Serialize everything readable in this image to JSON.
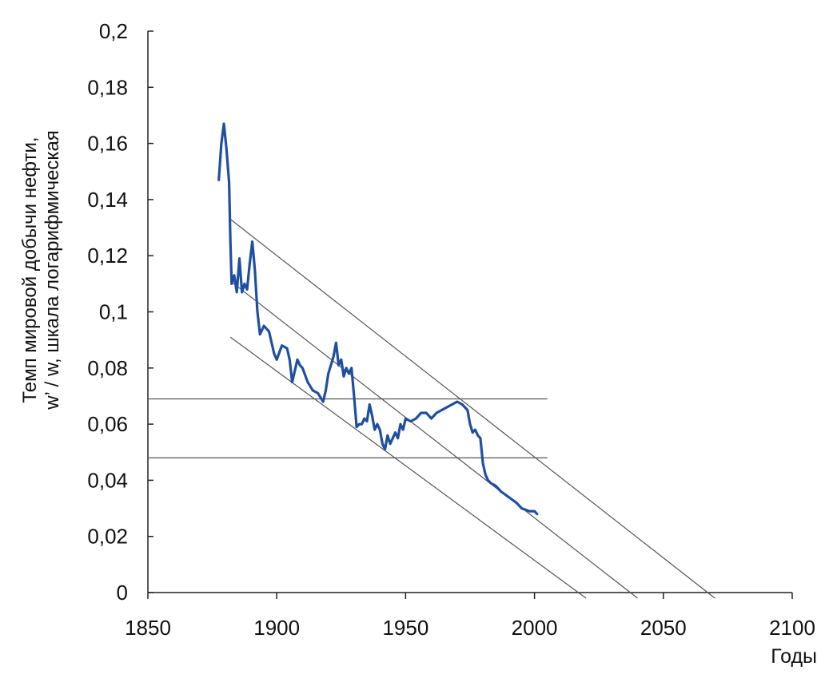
{
  "chart_data": {
    "type": "line",
    "title": "",
    "xlabel": "Годы",
    "ylabel_line1": "Темп мировой добычи нефти,",
    "ylabel_line2": "w’ / w, шкала логарифмическая",
    "xlim": [
      1850,
      2100
    ],
    "ylim": [
      0,
      0.2
    ],
    "x_ticks": [
      1850,
      1900,
      1950,
      2000,
      2050,
      2100
    ],
    "x_tick_labels": [
      "1850",
      "1900",
      "1950",
      "2000",
      "2050",
      "2100"
    ],
    "y_ticks": [
      0,
      0.02,
      0.04,
      0.06,
      0.08,
      0.1,
      0.12,
      0.14,
      0.16,
      0.18,
      0.2
    ],
    "y_tick_labels": [
      "0",
      "0,02",
      "0,04",
      "0,06",
      "0,08",
      "0,1",
      "0,12",
      "0,14",
      "0,16",
      "0,18",
      "0,2"
    ],
    "grid": false,
    "legend": "none",
    "series": [
      {
        "color": "#1f4fa0",
        "points": [
          [
            1877.5,
            0.147
          ],
          [
            1878.5,
            0.16
          ],
          [
            1879.5,
            0.167
          ],
          [
            1880.5,
            0.158
          ],
          [
            1881.5,
            0.146
          ],
          [
            1882,
            0.125
          ],
          [
            1882.5,
            0.11
          ],
          [
            1883.5,
            0.113
          ],
          [
            1884.5,
            0.107
          ],
          [
            1885.5,
            0.119
          ],
          [
            1886.5,
            0.107
          ],
          [
            1887.5,
            0.11
          ],
          [
            1888.5,
            0.108
          ],
          [
            1889.5,
            0.117
          ],
          [
            1890.5,
            0.125
          ],
          [
            1891.5,
            0.115
          ],
          [
            1892.5,
            0.1
          ],
          [
            1893.5,
            0.092
          ],
          [
            1895,
            0.095
          ],
          [
            1897,
            0.093
          ],
          [
            1899,
            0.085
          ],
          [
            1900,
            0.083
          ],
          [
            1902,
            0.088
          ],
          [
            1904,
            0.087
          ],
          [
            1905,
            0.083
          ],
          [
            1906,
            0.075
          ],
          [
            1907,
            0.079
          ],
          [
            1908,
            0.083
          ],
          [
            1909,
            0.081
          ],
          [
            1910,
            0.08
          ],
          [
            1912,
            0.075
          ],
          [
            1914,
            0.072
          ],
          [
            1916,
            0.071
          ],
          [
            1918,
            0.068
          ],
          [
            1919,
            0.072
          ],
          [
            1920,
            0.078
          ],
          [
            1921,
            0.081
          ],
          [
            1922,
            0.084
          ],
          [
            1923,
            0.089
          ],
          [
            1924,
            0.081
          ],
          [
            1925,
            0.083
          ],
          [
            1926,
            0.077
          ],
          [
            1927,
            0.08
          ],
          [
            1928,
            0.078
          ],
          [
            1929,
            0.08
          ],
          [
            1930,
            0.07
          ],
          [
            1931,
            0.059
          ],
          [
            1932,
            0.06
          ],
          [
            1933,
            0.06
          ],
          [
            1934,
            0.062
          ],
          [
            1935,
            0.061
          ],
          [
            1936,
            0.067
          ],
          [
            1937,
            0.063
          ],
          [
            1938,
            0.058
          ],
          [
            1939,
            0.06
          ],
          [
            1940,
            0.058
          ],
          [
            1941,
            0.053
          ],
          [
            1942,
            0.051
          ],
          [
            1943,
            0.056
          ],
          [
            1944,
            0.053
          ],
          [
            1945,
            0.055
          ],
          [
            1946,
            0.057
          ],
          [
            1947,
            0.055
          ],
          [
            1948,
            0.06
          ],
          [
            1949,
            0.058
          ],
          [
            1950,
            0.062
          ],
          [
            1952,
            0.061
          ],
          [
            1954,
            0.062
          ],
          [
            1956,
            0.064
          ],
          [
            1958,
            0.064
          ],
          [
            1960,
            0.062
          ],
          [
            1962,
            0.064
          ],
          [
            1964,
            0.065
          ],
          [
            1966,
            0.066
          ],
          [
            1968,
            0.067
          ],
          [
            1970,
            0.068
          ],
          [
            1972,
            0.067
          ],
          [
            1974,
            0.065
          ],
          [
            1975,
            0.06
          ],
          [
            1976,
            0.057
          ],
          [
            1977,
            0.058
          ],
          [
            1978,
            0.056
          ],
          [
            1979,
            0.055
          ],
          [
            1980,
            0.046
          ],
          [
            1981,
            0.042
          ],
          [
            1982,
            0.04
          ],
          [
            1983,
            0.039
          ],
          [
            1985,
            0.038
          ],
          [
            1987,
            0.036
          ],
          [
            1990,
            0.034
          ],
          [
            1993,
            0.032
          ],
          [
            1995,
            0.03
          ],
          [
            1998,
            0.029
          ],
          [
            2000,
            0.029
          ],
          [
            2001,
            0.028
          ]
        ]
      }
    ],
    "reference_lines": {
      "horizontal": [
        {
          "y": 0.069,
          "x_from": 1850,
          "x_to": 2005
        },
        {
          "y": 0.048,
          "x_from": 1850,
          "x_to": 2005
        }
      ],
      "diagonal": [
        {
          "from": [
            1882,
            0.133
          ],
          "to": [
            2070,
            -0.002
          ]
        },
        {
          "from": [
            1882,
            0.111
          ],
          "to": [
            2040,
            -0.002
          ]
        },
        {
          "from": [
            1882,
            0.091
          ],
          "to": [
            2020,
            -0.002
          ]
        }
      ]
    }
  }
}
